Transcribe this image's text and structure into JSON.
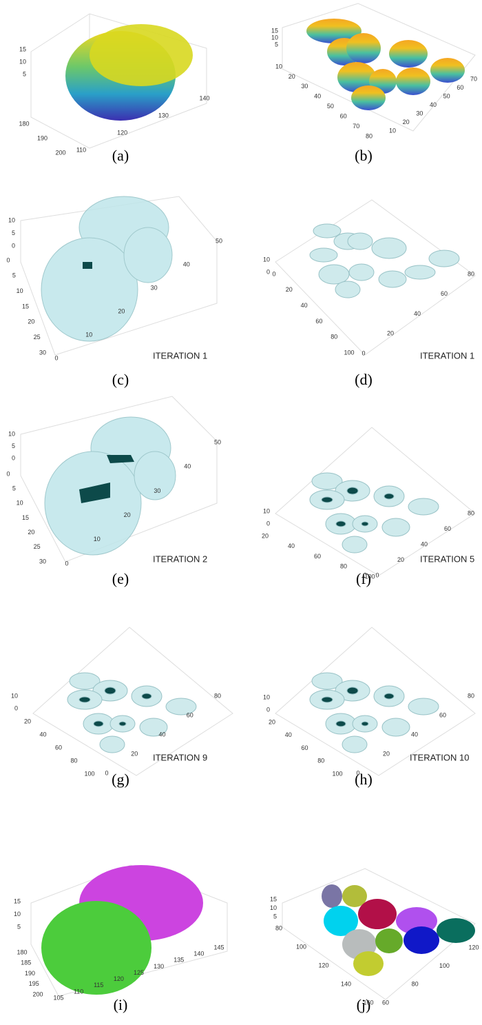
{
  "panels": [
    {
      "caption": "(a)",
      "z_ticks": [
        15,
        10,
        5
      ],
      "y_ticks": [
        180,
        190,
        200
      ],
      "x_ticks": [
        110,
        120,
        130,
        140
      ]
    },
    {
      "caption": "(b)",
      "z_ticks": [
        15,
        10,
        5
      ],
      "y_ticks": [
        10,
        20,
        30,
        40,
        50,
        60,
        70,
        80
      ],
      "x_ticks": [
        10,
        20,
        30,
        40,
        50,
        60,
        70
      ]
    },
    {
      "caption": "(c)",
      "annotation": "ITERATION 1",
      "z_ticks": [
        10,
        5,
        0
      ],
      "y_ticks": [
        0,
        5,
        10,
        15,
        20,
        25,
        30
      ],
      "x_ticks": [
        0,
        10,
        20,
        30,
        40,
        50
      ]
    },
    {
      "caption": "(d)",
      "annotation": "ITERATION 1",
      "z_ticks": [
        10,
        0
      ],
      "y_ticks": [
        0,
        20,
        40,
        60,
        80,
        100
      ],
      "x_ticks": [
        0,
        20,
        40,
        60,
        80
      ]
    },
    {
      "caption": "(e)",
      "annotation": "ITERATION 2",
      "z_ticks": [
        10,
        5,
        0
      ],
      "y_ticks": [
        0,
        5,
        10,
        15,
        20,
        25,
        30
      ],
      "x_ticks": [
        0,
        10,
        20,
        30,
        40,
        50
      ]
    },
    {
      "caption": "(f)",
      "annotation": "ITERATION 5",
      "z_ticks": [
        10,
        0
      ],
      "y_ticks": [
        20,
        40,
        60,
        80,
        100
      ],
      "x_ticks": [
        0,
        20,
        40,
        60,
        80
      ]
    },
    {
      "caption": "(g)",
      "annotation": "ITERATION 9",
      "z_ticks": [
        10,
        0
      ],
      "y_ticks": [
        20,
        40,
        60,
        80,
        100
      ],
      "x_ticks": [
        0,
        20,
        40,
        60,
        80
      ]
    },
    {
      "caption": "(h)",
      "annotation": "ITERATION 10",
      "z_ticks": [
        10,
        0
      ],
      "y_ticks": [
        20,
        40,
        60,
        80,
        100
      ],
      "x_ticks": [
        0,
        20,
        40,
        60,
        80
      ]
    },
    {
      "caption": "(i)",
      "z_ticks": [
        15,
        10,
        5
      ],
      "y_ticks": [
        180,
        185,
        190,
        195,
        200
      ],
      "x_ticks": [
        105,
        110,
        115,
        120,
        125,
        130,
        135,
        140,
        145
      ]
    },
    {
      "caption": "(j)",
      "z_ticks": [
        15,
        10,
        5
      ],
      "y_ticks": [
        80,
        100,
        120,
        140,
        160
      ],
      "x_ticks": [
        60,
        80,
        100,
        120
      ]
    }
  ]
}
